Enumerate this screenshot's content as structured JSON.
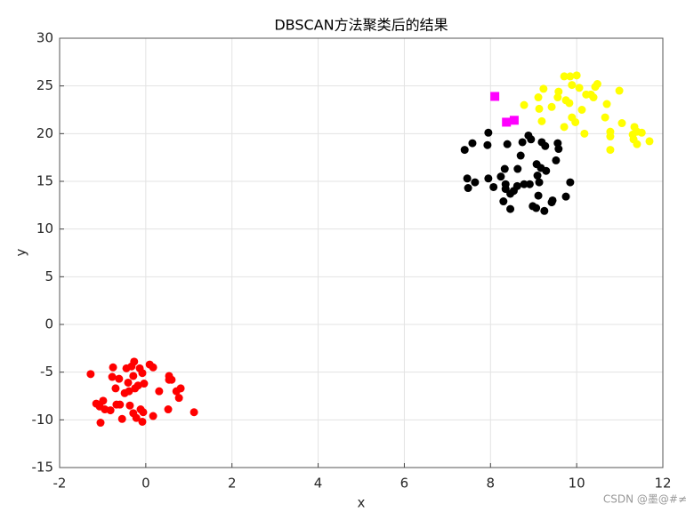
{
  "chart_data": {
    "type": "scatter",
    "title": "DBSCAN方法聚类后的结果",
    "x_label": "x",
    "y_label": "y",
    "xlim": [
      -2,
      12
    ],
    "xticks": [
      -2,
      0,
      2,
      4,
      6,
      8,
      10,
      12
    ],
    "ylim": [
      -15,
      30
    ],
    "yticks": [
      -15,
      -10,
      -5,
      0,
      5,
      10,
      15,
      20,
      25,
      30
    ],
    "grid": true,
    "series": [
      {
        "color": "#ff0000",
        "marker": "circle",
        "x": [
          -1.28,
          -1.15,
          -1.07,
          -1.05,
          -0.99,
          -0.95,
          -0.82,
          -0.76,
          -0.78,
          -0.7,
          -0.68,
          -0.62,
          -0.6,
          -0.55,
          -0.49,
          -0.45,
          -0.41,
          -0.39,
          -0.37,
          -0.33,
          -0.29,
          -0.29,
          -0.27,
          -0.25,
          -0.22,
          -0.18,
          -0.14,
          -0.12,
          -0.08,
          -0.08,
          -0.06,
          -0.04,
          0.09,
          0.17,
          0.17,
          0.31,
          0.52,
          0.54,
          0.54,
          0.6,
          0.71,
          0.81,
          0.77,
          1.12
        ],
        "y": [
          -5.2,
          -8.3,
          -8.6,
          -10.3,
          -8.0,
          -8.9,
          -9.0,
          -4.5,
          -5.5,
          -6.7,
          -8.4,
          -5.7,
          -8.4,
          -9.9,
          -7.2,
          -4.6,
          -6.1,
          -7.0,
          -8.5,
          -4.4,
          -5.4,
          -9.3,
          -3.9,
          -6.7,
          -9.8,
          -6.4,
          -4.6,
          -8.9,
          -5.1,
          -10.2,
          -9.2,
          -6.2,
          -4.2,
          -4.5,
          -9.6,
          -7.0,
          -8.9,
          -5.4,
          -5.8,
          -5.8,
          -7.0,
          -6.7,
          -7.7,
          -9.2
        ]
      },
      {
        "color": "#000000",
        "marker": "circle",
        "x": [
          7.4,
          7.58,
          7.95,
          7.93,
          8.39,
          8.74,
          8.88,
          8.94,
          9.19,
          9.27,
          9.56,
          9.58,
          8.7,
          9.52,
          9.07,
          9.17,
          9.29,
          8.63,
          8.33,
          7.46,
          7.64,
          7.95,
          8.24,
          8.35,
          7.48,
          8.07,
          8.35,
          8.62,
          8.78,
          8.91,
          9.09,
          9.13,
          9.85,
          8.54,
          8.46,
          8.3,
          9.11,
          9.44,
          9.42,
          9.75,
          8.98,
          9.06,
          9.25,
          8.46
        ],
        "y": [
          18.3,
          19.0,
          20.1,
          18.8,
          18.9,
          19.1,
          19.8,
          19.4,
          19.1,
          18.7,
          19.0,
          18.4,
          17.7,
          17.2,
          16.8,
          16.4,
          16.1,
          16.3,
          16.3,
          15.3,
          14.9,
          15.3,
          15.5,
          14.7,
          14.3,
          14.4,
          14.2,
          14.5,
          14.7,
          14.7,
          15.6,
          14.9,
          14.9,
          14.0,
          13.7,
          12.9,
          13.5,
          13.0,
          12.8,
          13.4,
          12.4,
          12.2,
          11.9,
          12.1
        ]
      },
      {
        "color": "#ffff00",
        "marker": "circle",
        "x": [
          9.71,
          9.85,
          10.0,
          9.23,
          9.58,
          9.89,
          10.06,
          10.43,
          10.48,
          10.99,
          9.11,
          9.56,
          9.75,
          9.83,
          10.22,
          10.33,
          10.39,
          8.78,
          9.13,
          9.42,
          10.12,
          10.7,
          10.66,
          9.89,
          9.97,
          9.71,
          10.18,
          11.05,
          11.34,
          10.78,
          10.78,
          10.78,
          11.3,
          11.4,
          11.51,
          11.32,
          11.4,
          11.69,
          9.19
        ],
        "y": [
          26.0,
          26.0,
          26.1,
          24.7,
          24.4,
          25.1,
          24.8,
          24.9,
          25.2,
          24.5,
          23.8,
          23.8,
          23.5,
          23.2,
          24.1,
          24.1,
          23.8,
          23.0,
          22.6,
          22.8,
          22.5,
          23.1,
          21.7,
          21.7,
          21.2,
          20.7,
          20.0,
          21.1,
          20.7,
          20.2,
          19.7,
          18.3,
          19.9,
          20.2,
          20.1,
          19.4,
          18.9,
          19.2,
          21.3
        ]
      },
      {
        "color": "#ff00ff",
        "marker": "square",
        "x": [
          8.1,
          8.37,
          8.55
        ],
        "y": [
          23.9,
          21.2,
          21.4
        ]
      }
    ]
  },
  "watermark": "CSDN @墨@#≠"
}
